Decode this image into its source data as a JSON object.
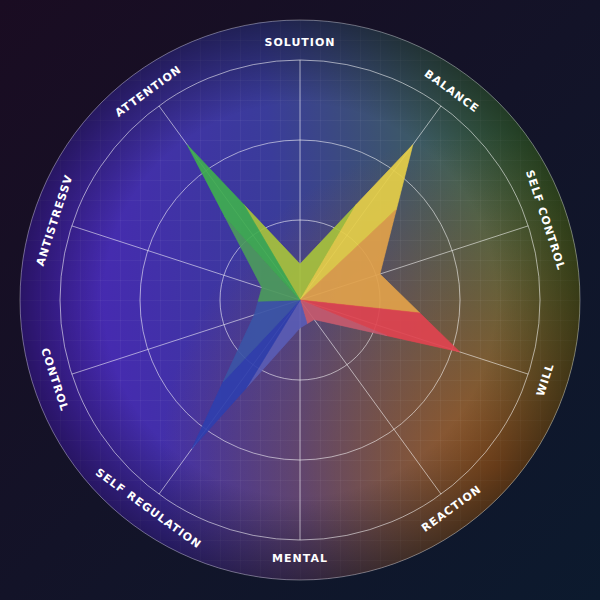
{
  "chart_data": {
    "type": "radar",
    "categories": [
      "SOLUTION",
      "BALANCE",
      "SELF CONTROL",
      "WILL",
      "REACTION",
      "MENTAL",
      "SELF REGULATION",
      "CONTROL",
      "ANTISTRESSV",
      "ATTENTION"
    ],
    "values": [
      0.45,
      2.4,
      1.05,
      2.1,
      0.3,
      0.35,
      2.3,
      0.6,
      0.5,
      2.4
    ],
    "colors": [
      "#a7c23c",
      "#e6cf48",
      "#e2a24a",
      "#e0434f",
      "#c65a6e",
      "#5a5cb4",
      "#2f3fae",
      "#3b55a6",
      "#4c9a5c",
      "#3fae4f"
    ],
    "ylim": [
      0,
      3
    ],
    "yticks": [
      1,
      2,
      3
    ],
    "tick_labels": false,
    "grid": true
  }
}
